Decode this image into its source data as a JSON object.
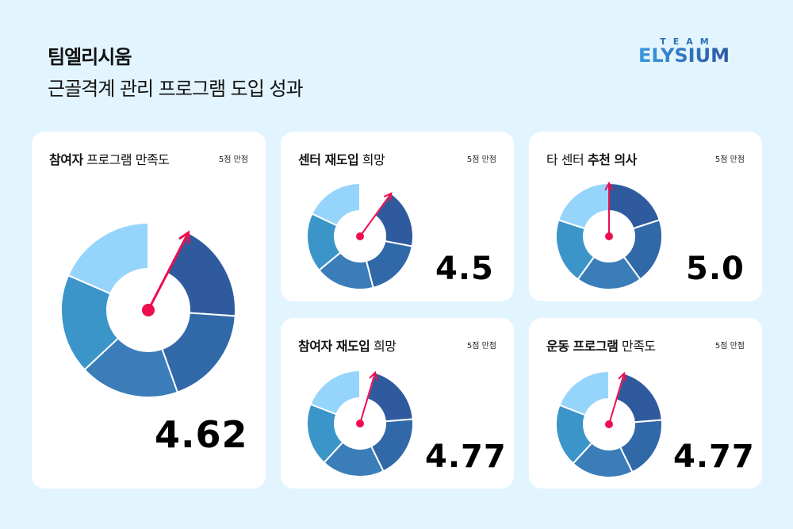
{
  "header": {
    "brand": "팀엘리시움",
    "subtitle": "근골격계 관리 프로그램 도입 성과"
  },
  "logo": {
    "top": "TEAM",
    "main": "ELYSIUM"
  },
  "colors": {
    "background": "#e2f4fd",
    "card": "#ffffff",
    "needle": "#ee0e4f",
    "segments": [
      "#2f5a9e",
      "#3168a8",
      "#3a7db8",
      "#3b95c9",
      "#96d5fb"
    ]
  },
  "cards": [
    {
      "title_bold": "참여자",
      "title_light": "프로그램 만족도",
      "max_label": "5점 만점",
      "score": "4.62",
      "value": 4.62,
      "max": 5
    },
    {
      "title_bold": "센터 재도입",
      "title_light": "희망",
      "max_label": "5점 만점",
      "score": "4.5",
      "value": 4.5,
      "max": 5
    },
    {
      "title_bold": "타 센터",
      "title_light": "추천 의사",
      "max_label": "5점 만점",
      "score": "5.0",
      "value": 5.0,
      "max": 5
    },
    {
      "title_bold": "참여자 재도입",
      "title_light": "희망",
      "max_label": "5점 만점",
      "score": "4.77",
      "value": 4.77,
      "max": 5
    },
    {
      "title_bold": "운동 프로그램",
      "title_light": "만족도",
      "max_label": "5점 만점",
      "score": "4.77",
      "value": 4.77,
      "max": 5
    }
  ],
  "chart_data": [
    {
      "type": "pie",
      "title": "참여자 프로그램 만족도",
      "value": 4.62,
      "max": 5,
      "unit": "5점 만점",
      "segments": 5
    },
    {
      "type": "pie",
      "title": "센터 재도입 희망",
      "value": 4.5,
      "max": 5,
      "unit": "5점 만점",
      "segments": 5
    },
    {
      "type": "pie",
      "title": "타 센터 추천 의사",
      "value": 5.0,
      "max": 5,
      "unit": "5점 만점",
      "segments": 5
    },
    {
      "type": "pie",
      "title": "참여자 재도입 희망",
      "value": 4.77,
      "max": 5,
      "unit": "5점 만점",
      "segments": 5
    },
    {
      "type": "pie",
      "title": "운동 프로그램 만족도",
      "value": 4.77,
      "max": 5,
      "unit": "5점 만점",
      "segments": 5
    }
  ]
}
